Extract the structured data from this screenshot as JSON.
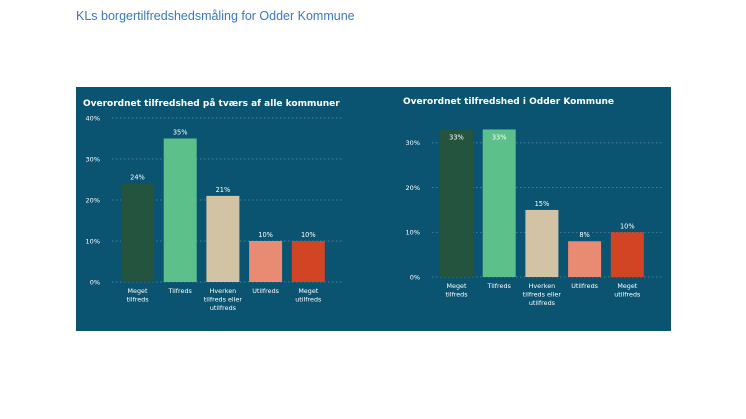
{
  "document": {
    "title": "KLs borgertilfredshedsmåling for Odder Kommune"
  },
  "colors": {
    "panel_background": "#0a5471",
    "categories": [
      "#24543e",
      "#5cc08a",
      "#d2c3a5",
      "#e98a73",
      "#d14525"
    ]
  },
  "chart_data": [
    {
      "type": "bar",
      "title": "Overordnet tilfredshed på tværs af alle kommuner",
      "categories": [
        [
          "Meget",
          "tilfreds"
        ],
        [
          "Tilfreds"
        ],
        [
          "Hverken",
          "tilfreds eller",
          "utilfreds"
        ],
        [
          "Utilfreds"
        ],
        [
          "Meget",
          "utilfreds"
        ]
      ],
      "values": [
        24,
        35,
        21,
        10,
        10
      ],
      "data_labels": [
        "24%",
        "35%",
        "21%",
        "10%",
        "10%"
      ],
      "yticks": [
        0,
        10,
        20,
        30,
        40
      ],
      "ytick_labels": [
        "0%",
        "10%",
        "20%",
        "30%",
        "40%"
      ],
      "ylim": [
        0,
        40
      ],
      "grid": true,
      "data_label_position": "above"
    },
    {
      "type": "bar",
      "title": "Overordnet tilfredshed i Odder Kommune",
      "categories": [
        [
          "Meget",
          "tilfreds"
        ],
        [
          "Tilfreds"
        ],
        [
          "Hverken",
          "tilfreds eller",
          "utilfreds"
        ],
        [
          "Utilfreds"
        ],
        [
          "Meget",
          "utilfreds"
        ]
      ],
      "values": [
        33,
        33,
        15,
        8,
        10
      ],
      "data_labels": [
        "33%",
        "33%",
        "15%",
        "8%",
        "10%"
      ],
      "yticks": [
        0,
        10,
        20,
        30
      ],
      "ytick_labels": [
        "0%",
        "10%",
        "20%",
        "30%"
      ],
      "ylim": [
        0,
        34
      ],
      "grid": true,
      "data_label_position": "inside-top for tall bars, above otherwise"
    }
  ]
}
